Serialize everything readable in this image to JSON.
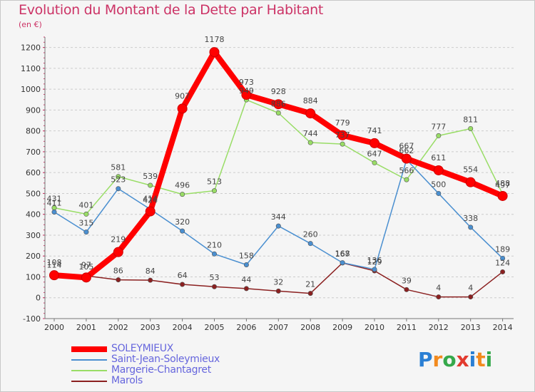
{
  "title": "Evolution du Montant de la Dette par Habitant",
  "subtitle": "(en €)",
  "logo": {
    "text": "Proxiti",
    "letter_colors": [
      "#2a7fd4",
      "#f28a1e",
      "#35a84a",
      "#e23a2e",
      "#2a7fd4",
      "#f28a1e",
      "#35a84a"
    ]
  },
  "chart_data": {
    "type": "line",
    "title": "Evolution du Montant de la Dette par Habitant",
    "ylabel": "(en €)",
    "xlabel": "",
    "x": [
      "2000",
      "2001",
      "2002",
      "2003",
      "2004",
      "2005",
      "2006",
      "2007",
      "2008",
      "2009",
      "2010",
      "2011",
      "2012",
      "2013",
      "2014"
    ],
    "yticks": [
      "-100",
      "0",
      "100",
      "200",
      "300",
      "400",
      "500",
      "600",
      "700",
      "800",
      "900",
      "1000",
      "1100",
      "1200"
    ],
    "ylim": [
      -100,
      1250
    ],
    "grid": "horizontal dashed",
    "series": [
      {
        "name": "SOLEYMIEUX",
        "color": "#ff0000",
        "values": [
          108,
          97,
          219,
          414,
          907,
          1178,
          973,
          928,
          884,
          779,
          741,
          667,
          611,
          554,
          488
        ],
        "labels": [
          "108",
          "97",
          "219",
          "414",
          "907",
          "1178",
          "973",
          "928",
          "884",
          "779",
          "741",
          "667",
          "611",
          "554",
          "488"
        ]
      },
      {
        "name": "Saint-Jean-Soleymieux",
        "color": "#4a8fd0",
        "values": [
          411,
          315,
          523,
          424,
          320,
          210,
          158,
          344,
          260,
          168,
          136,
          662,
          500,
          338,
          189
        ],
        "labels": [
          "411",
          "315",
          "523",
          "424",
          "320",
          "210",
          "158",
          "344",
          "260",
          "168",
          "136",
          "662",
          "500",
          "338",
          "189"
        ]
      },
      {
        "name": "Margerie-Chantagret",
        "color": "#99dd66",
        "values": [
          431,
          401,
          581,
          539,
          496,
          513,
          949,
          886,
          744,
          737,
          647,
          566,
          777,
          811,
          497
        ],
        "labels": [
          "431",
          "401",
          "581",
          "539",
          "496",
          "513",
          "949",
          "886",
          "744",
          "737",
          "647",
          "566",
          "777",
          "811",
          "497"
        ]
      },
      {
        "name": "Marols",
        "color": "#8b2020",
        "values": [
          114,
          105,
          86,
          84,
          64,
          53,
          44,
          32,
          21,
          167,
          129,
          39,
          4,
          4,
          124
        ],
        "labels": [
          "114",
          "105",
          "86",
          "84",
          "64",
          "53",
          "44",
          "32",
          "21",
          "167",
          "129",
          "39",
          "4",
          "4",
          "124"
        ]
      }
    ],
    "legend_position": "bottom-left"
  }
}
